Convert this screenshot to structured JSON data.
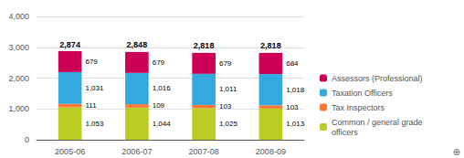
{
  "chart_data": {
    "type": "bar",
    "stacked": true,
    "data_labels": true,
    "grid": true,
    "legend": "lower right",
    "categories": [
      "2005-06",
      "2006-07",
      "2007-08",
      "2008-09"
    ],
    "series": [
      {
        "name": "Common / general grade\nofficers",
        "color": "#bbcc22",
        "values": [
          1053,
          1044,
          1025,
          1013
        ],
        "value_labels": [
          "1,053",
          "1,044",
          "1,025",
          "1,013"
        ]
      },
      {
        "name": "Tax Inspectors",
        "color": "#ff7733",
        "values": [
          111,
          109,
          103,
          103
        ],
        "value_labels": [
          "111",
          "109",
          "103",
          "103"
        ]
      },
      {
        "name": "Taxation Officers",
        "color": "#33aadd",
        "values": [
          1031,
          1016,
          1011,
          1018
        ],
        "value_labels": [
          "1,031",
          "1,016",
          "1,011",
          "1,018"
        ]
      },
      {
        "name": "Assessors (Professional)",
        "color": "#cc0055",
        "values": [
          679,
          679,
          679,
          684
        ],
        "value_labels": [
          "679",
          "679",
          "679",
          "684"
        ]
      }
    ],
    "totals": [
      2874,
      2848,
      2818,
      2818
    ],
    "total_labels": [
      "2,874",
      "2,848",
      "2,818",
      "2,818"
    ],
    "ylim": [
      0,
      4000
    ],
    "yticks": [
      0,
      {
        "value": 1000,
        "label": "1,000"
      },
      {
        "value": 2000,
        "label": "2,000"
      },
      {
        "value": 3000,
        "label": "3,000"
      },
      {
        "value": 4000,
        "label": "4,000"
      }
    ],
    "annotation": "⊕"
  }
}
